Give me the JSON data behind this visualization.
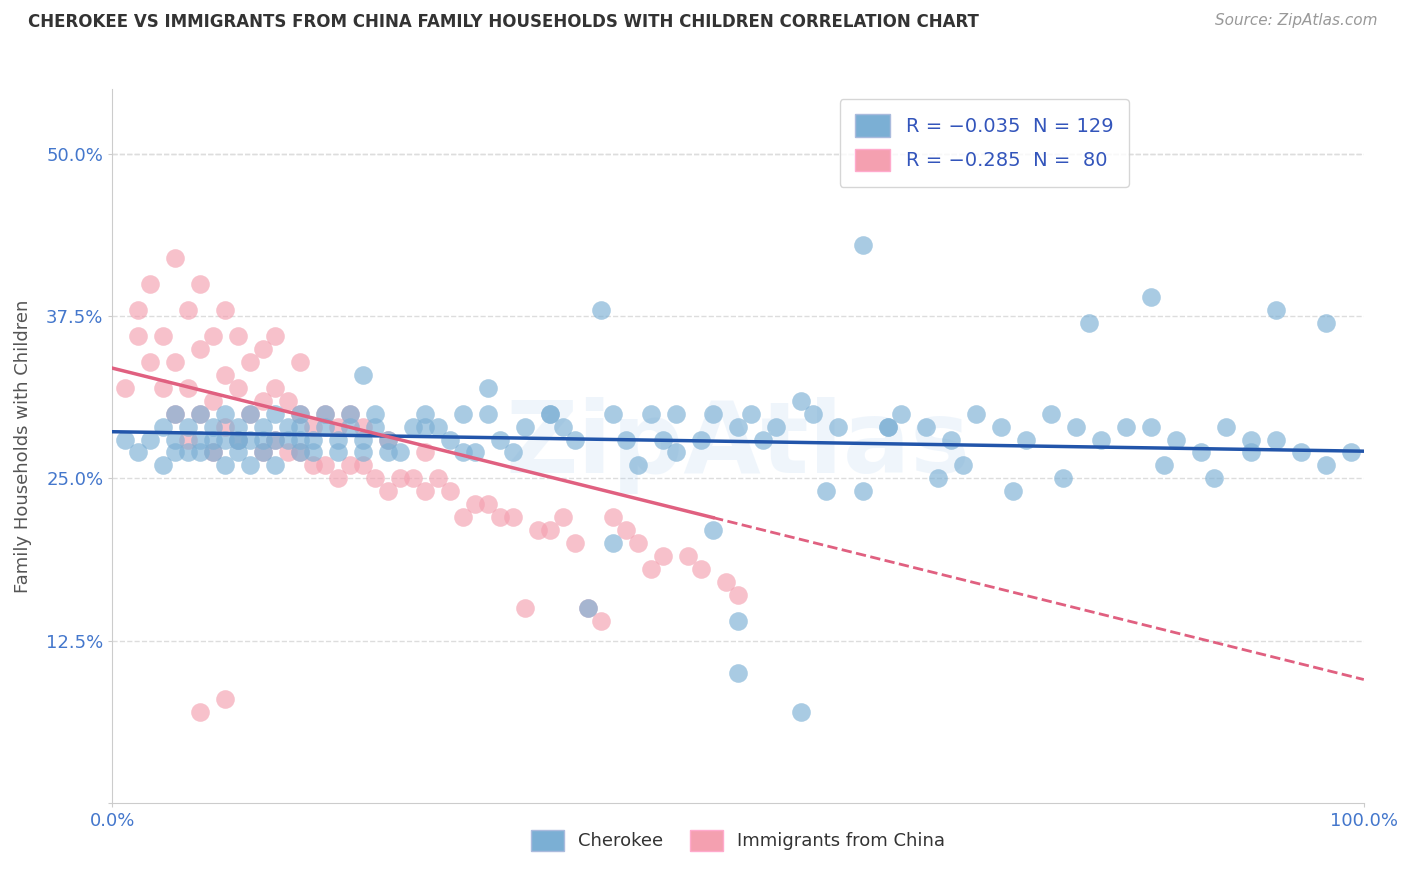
{
  "title": "CHEROKEE VS IMMIGRANTS FROM CHINA FAMILY HOUSEHOLDS WITH CHILDREN CORRELATION CHART",
  "source": "Source: ZipAtlas.com",
  "ylabel": "Family Households with Children",
  "yticks": [
    0.0,
    0.125,
    0.25,
    0.375,
    0.5
  ],
  "ytick_labels": [
    "",
    "12.5%",
    "25.0%",
    "37.5%",
    "50.0%"
  ],
  "xlim": [
    0.0,
    1.0
  ],
  "ylim": [
    0.0,
    0.55
  ],
  "legend_r_n": [
    "R = -0.035  N = 129",
    "R = -0.285  N =  80"
  ],
  "bottom_labels": [
    "Cherokee",
    "Immigrants from China"
  ],
  "watermark": "ZipAtlas",
  "blue_color": "#7BAFD4",
  "pink_color": "#F4A0B0",
  "blue_line_color": "#2255AA",
  "pink_line_color": "#E06080",
  "cherokee_x": [
    0.01,
    0.02,
    0.03,
    0.04,
    0.04,
    0.05,
    0.05,
    0.05,
    0.06,
    0.06,
    0.07,
    0.07,
    0.07,
    0.08,
    0.08,
    0.08,
    0.09,
    0.09,
    0.09,
    0.1,
    0.1,
    0.1,
    0.11,
    0.11,
    0.11,
    0.12,
    0.12,
    0.12,
    0.13,
    0.13,
    0.13,
    0.14,
    0.14,
    0.15,
    0.15,
    0.15,
    0.16,
    0.16,
    0.17,
    0.17,
    0.18,
    0.18,
    0.19,
    0.19,
    0.2,
    0.2,
    0.21,
    0.21,
    0.22,
    0.23,
    0.24,
    0.25,
    0.26,
    0.27,
    0.28,
    0.29,
    0.3,
    0.31,
    0.32,
    0.33,
    0.35,
    0.36,
    0.37,
    0.39,
    0.4,
    0.41,
    0.43,
    0.44,
    0.45,
    0.47,
    0.48,
    0.5,
    0.51,
    0.53,
    0.55,
    0.56,
    0.58,
    0.6,
    0.62,
    0.63,
    0.65,
    0.67,
    0.69,
    0.71,
    0.73,
    0.75,
    0.77,
    0.79,
    0.81,
    0.83,
    0.85,
    0.87,
    0.89,
    0.91,
    0.93,
    0.95,
    0.97,
    0.99,
    0.5,
    0.55,
    0.2,
    0.25,
    0.3,
    0.35,
    0.45,
    0.52,
    0.6,
    0.68,
    0.76,
    0.84,
    0.91,
    0.1,
    0.15,
    0.22,
    0.28,
    0.38,
    0.42,
    0.48,
    0.57,
    0.66,
    0.72,
    0.78,
    0.83,
    0.88,
    0.93,
    0.97,
    0.4,
    0.5,
    0.62
  ],
  "cherokee_y": [
    0.28,
    0.27,
    0.28,
    0.26,
    0.29,
    0.28,
    0.27,
    0.3,
    0.27,
    0.29,
    0.28,
    0.27,
    0.3,
    0.29,
    0.28,
    0.27,
    0.3,
    0.28,
    0.26,
    0.29,
    0.28,
    0.27,
    0.3,
    0.28,
    0.26,
    0.29,
    0.28,
    0.27,
    0.3,
    0.28,
    0.26,
    0.29,
    0.28,
    0.3,
    0.27,
    0.29,
    0.28,
    0.27,
    0.29,
    0.3,
    0.28,
    0.27,
    0.29,
    0.3,
    0.28,
    0.27,
    0.29,
    0.3,
    0.28,
    0.27,
    0.29,
    0.3,
    0.29,
    0.28,
    0.3,
    0.27,
    0.3,
    0.28,
    0.27,
    0.29,
    0.3,
    0.29,
    0.28,
    0.38,
    0.3,
    0.28,
    0.3,
    0.28,
    0.3,
    0.28,
    0.3,
    0.29,
    0.3,
    0.29,
    0.31,
    0.3,
    0.29,
    0.43,
    0.29,
    0.3,
    0.29,
    0.28,
    0.3,
    0.29,
    0.28,
    0.3,
    0.29,
    0.28,
    0.29,
    0.39,
    0.28,
    0.27,
    0.29,
    0.28,
    0.38,
    0.27,
    0.37,
    0.27,
    0.14,
    0.07,
    0.33,
    0.29,
    0.32,
    0.3,
    0.27,
    0.28,
    0.24,
    0.26,
    0.25,
    0.26,
    0.27,
    0.28,
    0.28,
    0.27,
    0.27,
    0.15,
    0.26,
    0.21,
    0.24,
    0.25,
    0.24,
    0.37,
    0.29,
    0.25,
    0.28,
    0.26,
    0.2,
    0.1,
    0.29
  ],
  "china_x": [
    0.01,
    0.02,
    0.02,
    0.03,
    0.03,
    0.04,
    0.04,
    0.05,
    0.05,
    0.05,
    0.06,
    0.06,
    0.06,
    0.07,
    0.07,
    0.07,
    0.08,
    0.08,
    0.08,
    0.09,
    0.09,
    0.09,
    0.1,
    0.1,
    0.1,
    0.11,
    0.11,
    0.12,
    0.12,
    0.12,
    0.13,
    0.13,
    0.13,
    0.14,
    0.14,
    0.15,
    0.15,
    0.15,
    0.16,
    0.16,
    0.17,
    0.17,
    0.18,
    0.18,
    0.19,
    0.19,
    0.2,
    0.2,
    0.21,
    0.22,
    0.22,
    0.23,
    0.24,
    0.25,
    0.25,
    0.26,
    0.27,
    0.28,
    0.29,
    0.3,
    0.31,
    0.32,
    0.33,
    0.34,
    0.35,
    0.36,
    0.37,
    0.38,
    0.39,
    0.4,
    0.41,
    0.42,
    0.43,
    0.44,
    0.46,
    0.47,
    0.49,
    0.5,
    0.07,
    0.09
  ],
  "china_y": [
    0.32,
    0.36,
    0.38,
    0.34,
    0.4,
    0.32,
    0.36,
    0.3,
    0.34,
    0.42,
    0.28,
    0.32,
    0.38,
    0.3,
    0.35,
    0.4,
    0.27,
    0.31,
    0.36,
    0.29,
    0.33,
    0.38,
    0.28,
    0.32,
    0.36,
    0.3,
    0.34,
    0.27,
    0.31,
    0.35,
    0.28,
    0.32,
    0.36,
    0.27,
    0.31,
    0.27,
    0.3,
    0.34,
    0.26,
    0.29,
    0.26,
    0.3,
    0.25,
    0.29,
    0.26,
    0.3,
    0.26,
    0.29,
    0.25,
    0.24,
    0.28,
    0.25,
    0.25,
    0.24,
    0.27,
    0.25,
    0.24,
    0.22,
    0.23,
    0.23,
    0.22,
    0.22,
    0.15,
    0.21,
    0.21,
    0.22,
    0.2,
    0.15,
    0.14,
    0.22,
    0.21,
    0.2,
    0.18,
    0.19,
    0.19,
    0.18,
    0.17,
    0.16,
    0.07,
    0.08
  ]
}
